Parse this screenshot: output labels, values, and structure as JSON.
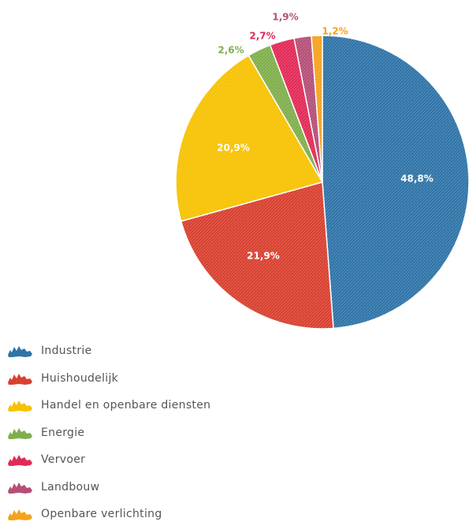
{
  "chart_data": {
    "type": "pie",
    "title": "",
    "slices": [
      {
        "label": "Industrie",
        "value": 48.8,
        "value_label": "48,8%",
        "color": "#2f74a8",
        "label_color": "#ffffff"
      },
      {
        "label": "Huishoudelijk",
        "value": 21.9,
        "value_label": "21,9%",
        "color": "#d9402f",
        "label_color": "#ffffff"
      },
      {
        "label": "Handel en openbare diensten",
        "value": 20.9,
        "value_label": "20,9%",
        "color": "#f7c200",
        "label_color": "#ffffff"
      },
      {
        "label": "Energie",
        "value": 2.6,
        "value_label": "2,6%",
        "color": "#7faf4c",
        "label_color": "#7faf4c"
      },
      {
        "label": "Vervoer",
        "value": 2.7,
        "value_label": "2,7%",
        "color": "#e22a57",
        "label_color": "#e22a57"
      },
      {
        "label": "Landbouw",
        "value": 1.9,
        "value_label": "1,9%",
        "color": "#b54f78",
        "label_color": "#b54f78"
      },
      {
        "label": "Openbare verlichting",
        "value": 1.2,
        "value_label": "1,2%",
        "color": "#f5a21c",
        "label_color": "#f5a21c"
      }
    ],
    "start_angle": "12 o'clock",
    "direction": "clockwise",
    "legend_position": "bottom-left"
  }
}
